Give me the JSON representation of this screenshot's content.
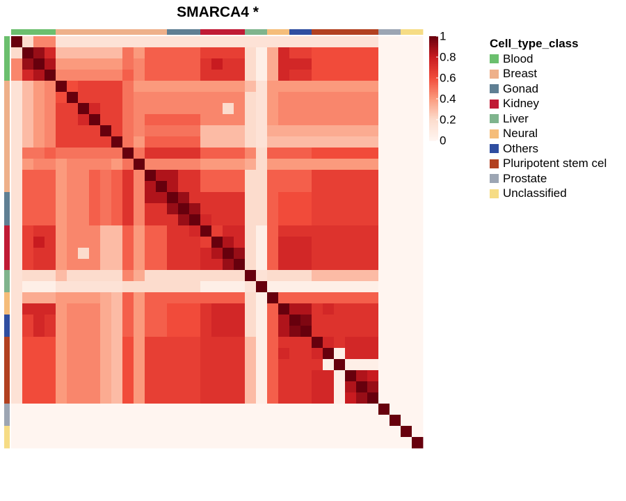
{
  "chart_data": {
    "type": "heatmap",
    "title": "SMARCA4 *",
    "legend_title": "Cell_type_class",
    "categories": [
      "Blood",
      "Breast",
      "Gonad",
      "Kidney",
      "Liver",
      "Neural",
      "Others",
      "Pluripotent stem cel",
      "Prostate",
      "Unclassified"
    ],
    "category_colors": [
      "#6bbf6e",
      "#eeb08a",
      "#5f7f93",
      "#c01b35",
      "#7fb48d",
      "#f5bd7a",
      "#2f4ea0",
      "#b24120",
      "#9ca5b3",
      "#f6dc85"
    ],
    "sample_classes": [
      0,
      0,
      0,
      0,
      1,
      1,
      1,
      1,
      1,
      1,
      1,
      1,
      1,
      1,
      2,
      2,
      2,
      3,
      3,
      3,
      3,
      4,
      4,
      5,
      5,
      6,
      6,
      7,
      7,
      7,
      7,
      7,
      7,
      8,
      8,
      9,
      9
    ],
    "color_scale": {
      "ticks": [
        0,
        0.2,
        0.4,
        0.6,
        0.8,
        1
      ],
      "range": [
        0,
        1
      ],
      "colors": [
        "#fff5f0",
        "#fcdccd",
        "#fb9a7d",
        "#f14b3a",
        "#c81b20",
        "#67000d"
      ]
    },
    "values": [
      [
        1,
        0.2,
        0.45,
        0.45,
        0.15,
        0.15,
        0.15,
        0.15,
        0.15,
        0.15,
        0.15,
        0.15,
        0.15,
        0.15,
        0.15,
        0.15,
        0.15,
        0.15,
        0.15,
        0.15,
        0.15,
        0.15,
        0.15,
        0.15,
        0.15,
        0.15,
        0.15,
        0.15,
        0.15,
        0.15,
        0.15,
        0.15,
        0.15,
        0,
        0,
        0,
        0
      ],
      [
        0.2,
        1,
        0.9,
        0.75,
        0.3,
        0.3,
        0.3,
        0.3,
        0.3,
        0.3,
        0.5,
        0.4,
        0.55,
        0.55,
        0.55,
        0.55,
        0.55,
        0.65,
        0.65,
        0.65,
        0.65,
        0.2,
        0.05,
        0.35,
        0.75,
        0.65,
        0.65,
        0.6,
        0.6,
        0.6,
        0.6,
        0.6,
        0.6,
        0,
        0,
        0,
        0
      ],
      [
        0.45,
        0.9,
        1,
        0.85,
        0.4,
        0.4,
        0.4,
        0.4,
        0.4,
        0.4,
        0.5,
        0.45,
        0.55,
        0.55,
        0.55,
        0.55,
        0.55,
        0.7,
        0.8,
        0.7,
        0.7,
        0.2,
        0.05,
        0.35,
        0.75,
        0.75,
        0.75,
        0.6,
        0.6,
        0.6,
        0.6,
        0.6,
        0.6,
        0,
        0,
        0,
        0
      ],
      [
        0.45,
        0.75,
        0.85,
        1,
        0.45,
        0.45,
        0.45,
        0.45,
        0.45,
        0.45,
        0.55,
        0.45,
        0.55,
        0.55,
        0.55,
        0.55,
        0.55,
        0.7,
        0.7,
        0.7,
        0.7,
        0.2,
        0.05,
        0.35,
        0.75,
        0.7,
        0.7,
        0.6,
        0.6,
        0.6,
        0.6,
        0.6,
        0.6,
        0,
        0,
        0,
        0
      ],
      [
        0.15,
        0.3,
        0.4,
        0.45,
        1,
        0.6,
        0.65,
        0.65,
        0.65,
        0.65,
        0.5,
        0.4,
        0.4,
        0.4,
        0.4,
        0.4,
        0.4,
        0.4,
        0.4,
        0.4,
        0.4,
        0.3,
        0.15,
        0.4,
        0.4,
        0.4,
        0.4,
        0.4,
        0.4,
        0.4,
        0.4,
        0.4,
        0.4,
        0,
        0,
        0,
        0
      ],
      [
        0.15,
        0.3,
        0.4,
        0.45,
        0.6,
        1,
        0.65,
        0.65,
        0.65,
        0.65,
        0.5,
        0.45,
        0.45,
        0.45,
        0.45,
        0.45,
        0.45,
        0.45,
        0.45,
        0.45,
        0.45,
        0.2,
        0.15,
        0.4,
        0.45,
        0.45,
        0.45,
        0.45,
        0.45,
        0.45,
        0.45,
        0.45,
        0.45,
        0,
        0,
        0,
        0
      ],
      [
        0.15,
        0.3,
        0.4,
        0.45,
        0.65,
        0.65,
        1,
        0.75,
        0.65,
        0.65,
        0.5,
        0.45,
        0.45,
        0.45,
        0.45,
        0.45,
        0.45,
        0.45,
        0.45,
        0.2,
        0.45,
        0.2,
        0.15,
        0.4,
        0.45,
        0.45,
        0.45,
        0.45,
        0.45,
        0.45,
        0.45,
        0.45,
        0.45,
        0,
        0,
        0,
        0
      ],
      [
        0.15,
        0.3,
        0.4,
        0.45,
        0.65,
        0.65,
        0.75,
        1,
        0.65,
        0.65,
        0.5,
        0.45,
        0.55,
        0.55,
        0.55,
        0.55,
        0.55,
        0.45,
        0.45,
        0.45,
        0.45,
        0.2,
        0.15,
        0.4,
        0.45,
        0.45,
        0.45,
        0.45,
        0.45,
        0.45,
        0.45,
        0.45,
        0.45,
        0,
        0,
        0,
        0
      ],
      [
        0.15,
        0.3,
        0.4,
        0.45,
        0.65,
        0.65,
        0.65,
        0.65,
        1,
        0.65,
        0.5,
        0.45,
        0.5,
        0.5,
        0.5,
        0.5,
        0.5,
        0.3,
        0.3,
        0.3,
        0.3,
        0.2,
        0.15,
        0.35,
        0.35,
        0.35,
        0.35,
        0.35,
        0.35,
        0.35,
        0.35,
        0.35,
        0.35,
        0,
        0,
        0,
        0
      ],
      [
        0.15,
        0.3,
        0.4,
        0.45,
        0.65,
        0.65,
        0.65,
        0.65,
        0.65,
        1,
        0.5,
        0.4,
        0.55,
        0.55,
        0.55,
        0.55,
        0.55,
        0.3,
        0.3,
        0.3,
        0.3,
        0.2,
        0.15,
        0.3,
        0.3,
        0.3,
        0.3,
        0.3,
        0.3,
        0.3,
        0.3,
        0.3,
        0.3,
        0,
        0,
        0,
        0
      ],
      [
        0.15,
        0.5,
        0.5,
        0.55,
        0.5,
        0.5,
        0.5,
        0.5,
        0.5,
        0.5,
        1,
        0.5,
        0.7,
        0.7,
        0.7,
        0.7,
        0.7,
        0.55,
        0.55,
        0.55,
        0.55,
        0.45,
        0.2,
        0.55,
        0.55,
        0.55,
        0.55,
        0.6,
        0.6,
        0.6,
        0.6,
        0.6,
        0.6,
        0,
        0,
        0,
        0
      ],
      [
        0.15,
        0.4,
        0.45,
        0.45,
        0.4,
        0.45,
        0.45,
        0.45,
        0.45,
        0.4,
        0.5,
        1,
        0.45,
        0.45,
        0.45,
        0.45,
        0.45,
        0.4,
        0.4,
        0.4,
        0.4,
        0.35,
        0.2,
        0.4,
        0.4,
        0.4,
        0.4,
        0.4,
        0.4,
        0.4,
        0.4,
        0.4,
        0.4,
        0,
        0,
        0,
        0
      ],
      [
        0.15,
        0.55,
        0.55,
        0.55,
        0.4,
        0.45,
        0.45,
        0.55,
        0.5,
        0.55,
        0.7,
        0.45,
        1,
        0.85,
        0.85,
        0.7,
        0.7,
        0.55,
        0.55,
        0.55,
        0.55,
        0.2,
        0.2,
        0.55,
        0.55,
        0.55,
        0.55,
        0.65,
        0.65,
        0.65,
        0.65,
        0.65,
        0.65,
        0,
        0,
        0,
        0
      ],
      [
        0.15,
        0.55,
        0.55,
        0.55,
        0.4,
        0.45,
        0.45,
        0.55,
        0.5,
        0.55,
        0.7,
        0.45,
        0.85,
        1,
        0.85,
        0.7,
        0.7,
        0.55,
        0.55,
        0.55,
        0.55,
        0.2,
        0.2,
        0.55,
        0.55,
        0.55,
        0.55,
        0.65,
        0.65,
        0.65,
        0.65,
        0.65,
        0.65,
        0,
        0,
        0,
        0
      ],
      [
        0.15,
        0.55,
        0.55,
        0.55,
        0.4,
        0.45,
        0.45,
        0.55,
        0.5,
        0.55,
        0.7,
        0.45,
        0.85,
        0.85,
        1,
        0.9,
        0.7,
        0.7,
        0.7,
        0.7,
        0.7,
        0.2,
        0.2,
        0.55,
        0.6,
        0.6,
        0.6,
        0.65,
        0.65,
        0.65,
        0.65,
        0.65,
        0.65,
        0,
        0,
        0,
        0
      ],
      [
        0.15,
        0.55,
        0.55,
        0.55,
        0.4,
        0.45,
        0.45,
        0.55,
        0.5,
        0.55,
        0.7,
        0.45,
        0.7,
        0.7,
        0.9,
        1,
        0.9,
        0.7,
        0.7,
        0.7,
        0.7,
        0.2,
        0.2,
        0.55,
        0.6,
        0.6,
        0.6,
        0.65,
        0.65,
        0.65,
        0.65,
        0.65,
        0.65,
        0,
        0,
        0,
        0
      ],
      [
        0.15,
        0.55,
        0.55,
        0.55,
        0.4,
        0.45,
        0.45,
        0.55,
        0.5,
        0.55,
        0.7,
        0.45,
        0.7,
        0.7,
        0.7,
        0.9,
        1,
        0.75,
        0.7,
        0.7,
        0.7,
        0.2,
        0.2,
        0.55,
        0.6,
        0.6,
        0.6,
        0.65,
        0.65,
        0.65,
        0.65,
        0.65,
        0.65,
        0,
        0,
        0,
        0
      ],
      [
        0.15,
        0.65,
        0.7,
        0.7,
        0.4,
        0.45,
        0.45,
        0.45,
        0.3,
        0.3,
        0.55,
        0.4,
        0.55,
        0.55,
        0.7,
        0.7,
        0.75,
        1,
        0.65,
        0.75,
        0.75,
        0.2,
        0.05,
        0.55,
        0.7,
        0.7,
        0.7,
        0.7,
        0.7,
        0.7,
        0.7,
        0.7,
        0.7,
        0,
        0,
        0,
        0
      ],
      [
        0.15,
        0.65,
        0.8,
        0.7,
        0.4,
        0.45,
        0.45,
        0.45,
        0.3,
        0.3,
        0.55,
        0.4,
        0.55,
        0.55,
        0.7,
        0.7,
        0.7,
        0.65,
        1,
        0.85,
        0.75,
        0.2,
        0.05,
        0.55,
        0.75,
        0.75,
        0.75,
        0.7,
        0.7,
        0.7,
        0.7,
        0.7,
        0.7,
        0,
        0,
        0,
        0
      ],
      [
        0.15,
        0.65,
        0.7,
        0.7,
        0.4,
        0.45,
        0.2,
        0.45,
        0.3,
        0.3,
        0.55,
        0.4,
        0.55,
        0.55,
        0.7,
        0.7,
        0.7,
        0.75,
        0.85,
        1,
        0.9,
        0.2,
        0.05,
        0.55,
        0.75,
        0.75,
        0.75,
        0.7,
        0.7,
        0.7,
        0.7,
        0.7,
        0.7,
        0,
        0,
        0,
        0
      ],
      [
        0.15,
        0.65,
        0.7,
        0.7,
        0.4,
        0.45,
        0.45,
        0.45,
        0.3,
        0.3,
        0.55,
        0.4,
        0.55,
        0.55,
        0.7,
        0.7,
        0.7,
        0.75,
        0.75,
        0.9,
        1,
        0.2,
        0.05,
        0.55,
        0.75,
        0.75,
        0.75,
        0.7,
        0.7,
        0.7,
        0.7,
        0.7,
        0.7,
        0,
        0,
        0,
        0
      ],
      [
        0.15,
        0.2,
        0.2,
        0.2,
        0.3,
        0.2,
        0.2,
        0.2,
        0.2,
        0.2,
        0.45,
        0.35,
        0.2,
        0.2,
        0.2,
        0.2,
        0.2,
        0.2,
        0.2,
        0.2,
        0.2,
        1,
        0.15,
        0.2,
        0.2,
        0.2,
        0.2,
        0.3,
        0.3,
        0.3,
        0.3,
        0.3,
        0.3,
        0,
        0,
        0,
        0
      ],
      [
        0.15,
        0.05,
        0.05,
        0.05,
        0.15,
        0.15,
        0.15,
        0.15,
        0.15,
        0.15,
        0.2,
        0.2,
        0.2,
        0.2,
        0.2,
        0.2,
        0.2,
        0.05,
        0.05,
        0.05,
        0.05,
        0.15,
        1,
        0.05,
        0.05,
        0.05,
        0.05,
        0.05,
        0.05,
        0.05,
        0.05,
        0.05,
        0.05,
        0,
        0,
        0,
        0
      ],
      [
        0.15,
        0.35,
        0.35,
        0.35,
        0.4,
        0.4,
        0.4,
        0.4,
        0.35,
        0.3,
        0.55,
        0.4,
        0.55,
        0.55,
        0.55,
        0.55,
        0.55,
        0.55,
        0.55,
        0.55,
        0.55,
        0.2,
        0.05,
        1,
        0.55,
        0.55,
        0.55,
        0.55,
        0.55,
        0.55,
        0.55,
        0.55,
        0.55,
        0,
        0,
        0,
        0
      ],
      [
        0.15,
        0.75,
        0.75,
        0.75,
        0.4,
        0.45,
        0.45,
        0.45,
        0.35,
        0.3,
        0.55,
        0.4,
        0.55,
        0.55,
        0.6,
        0.6,
        0.6,
        0.7,
        0.75,
        0.75,
        0.75,
        0.2,
        0.05,
        0.55,
        1,
        0.85,
        0.85,
        0.7,
        0.75,
        0.7,
        0.7,
        0.7,
        0.7,
        0,
        0,
        0,
        0
      ],
      [
        0.15,
        0.65,
        0.75,
        0.7,
        0.4,
        0.45,
        0.45,
        0.45,
        0.35,
        0.3,
        0.55,
        0.4,
        0.55,
        0.55,
        0.6,
        0.6,
        0.6,
        0.7,
        0.75,
        0.75,
        0.75,
        0.2,
        0.05,
        0.55,
        0.85,
        1,
        0.95,
        0.7,
        0.7,
        0.7,
        0.7,
        0.7,
        0.7,
        0,
        0,
        0,
        0
      ],
      [
        0.15,
        0.65,
        0.75,
        0.7,
        0.4,
        0.45,
        0.45,
        0.45,
        0.35,
        0.3,
        0.55,
        0.4,
        0.55,
        0.55,
        0.6,
        0.6,
        0.6,
        0.7,
        0.75,
        0.75,
        0.75,
        0.2,
        0.05,
        0.55,
        0.85,
        0.95,
        1,
        0.7,
        0.7,
        0.7,
        0.7,
        0.7,
        0.7,
        0,
        0,
        0,
        0
      ],
      [
        0.15,
        0.6,
        0.6,
        0.6,
        0.4,
        0.45,
        0.45,
        0.45,
        0.35,
        0.3,
        0.6,
        0.4,
        0.65,
        0.65,
        0.65,
        0.65,
        0.65,
        0.7,
        0.7,
        0.7,
        0.7,
        0.3,
        0.05,
        0.55,
        0.7,
        0.7,
        0.7,
        1,
        0.75,
        0.7,
        0.75,
        0.75,
        0.75,
        0,
        0,
        0,
        0
      ],
      [
        0.15,
        0.6,
        0.6,
        0.6,
        0.4,
        0.45,
        0.45,
        0.45,
        0.35,
        0.3,
        0.6,
        0.4,
        0.65,
        0.65,
        0.65,
        0.65,
        0.65,
        0.7,
        0.7,
        0.7,
        0.7,
        0.3,
        0.05,
        0.55,
        0.75,
        0.7,
        0.7,
        0.75,
        1,
        0.05,
        0.75,
        0.75,
        0.75,
        0,
        0,
        0,
        0
      ],
      [
        0.15,
        0.6,
        0.6,
        0.6,
        0.4,
        0.45,
        0.45,
        0.45,
        0.35,
        0.3,
        0.6,
        0.4,
        0.65,
        0.65,
        0.65,
        0.65,
        0.65,
        0.7,
        0.7,
        0.7,
        0.7,
        0.3,
        0.05,
        0.55,
        0.7,
        0.7,
        0.7,
        0.7,
        0.05,
        1,
        0.05,
        0.05,
        0.05,
        0,
        0,
        0,
        0
      ],
      [
        0.15,
        0.6,
        0.6,
        0.6,
        0.4,
        0.45,
        0.45,
        0.45,
        0.35,
        0.3,
        0.6,
        0.4,
        0.65,
        0.65,
        0.65,
        0.65,
        0.65,
        0.7,
        0.7,
        0.7,
        0.7,
        0.3,
        0.05,
        0.55,
        0.7,
        0.7,
        0.7,
        0.75,
        0.75,
        0.05,
        1,
        0.85,
        0.8,
        0,
        0,
        0,
        0
      ],
      [
        0.15,
        0.6,
        0.6,
        0.6,
        0.4,
        0.45,
        0.45,
        0.45,
        0.35,
        0.3,
        0.6,
        0.4,
        0.65,
        0.65,
        0.65,
        0.65,
        0.65,
        0.7,
        0.7,
        0.7,
        0.7,
        0.3,
        0.05,
        0.55,
        0.7,
        0.7,
        0.7,
        0.75,
        0.75,
        0.05,
        0.85,
        1,
        0.9,
        0,
        0,
        0,
        0
      ],
      [
        0.15,
        0.6,
        0.6,
        0.6,
        0.4,
        0.45,
        0.45,
        0.45,
        0.35,
        0.3,
        0.6,
        0.4,
        0.65,
        0.65,
        0.65,
        0.65,
        0.65,
        0.7,
        0.7,
        0.7,
        0.7,
        0.3,
        0.05,
        0.55,
        0.7,
        0.7,
        0.7,
        0.75,
        0.75,
        0.05,
        0.8,
        0.9,
        1,
        0,
        0,
        0,
        0
      ],
      [
        0,
        0,
        0,
        0,
        0,
        0,
        0,
        0,
        0,
        0,
        0,
        0,
        0,
        0,
        0,
        0,
        0,
        0,
        0,
        0,
        0,
        0,
        0,
        0,
        0,
        0,
        0,
        0,
        0,
        0,
        0,
        0,
        0,
        1,
        0,
        0,
        0
      ],
      [
        0,
        0,
        0,
        0,
        0,
        0,
        0,
        0,
        0,
        0,
        0,
        0,
        0,
        0,
        0,
        0,
        0,
        0,
        0,
        0,
        0,
        0,
        0,
        0,
        0,
        0,
        0,
        0,
        0,
        0,
        0,
        0,
        0,
        0,
        1,
        0,
        0
      ],
      [
        0,
        0,
        0,
        0,
        0,
        0,
        0,
        0,
        0,
        0,
        0,
        0,
        0,
        0,
        0,
        0,
        0,
        0,
        0,
        0,
        0,
        0,
        0,
        0,
        0,
        0,
        0,
        0,
        0,
        0,
        0,
        0,
        0,
        0,
        0,
        1,
        0
      ],
      [
        0,
        0,
        0,
        0,
        0,
        0,
        0,
        0,
        0,
        0,
        0,
        0,
        0,
        0,
        0,
        0,
        0,
        0,
        0,
        0,
        0,
        0,
        0,
        0,
        0,
        0,
        0,
        0,
        0,
        0,
        0,
        0,
        0,
        0,
        0,
        0,
        1
      ]
    ]
  }
}
